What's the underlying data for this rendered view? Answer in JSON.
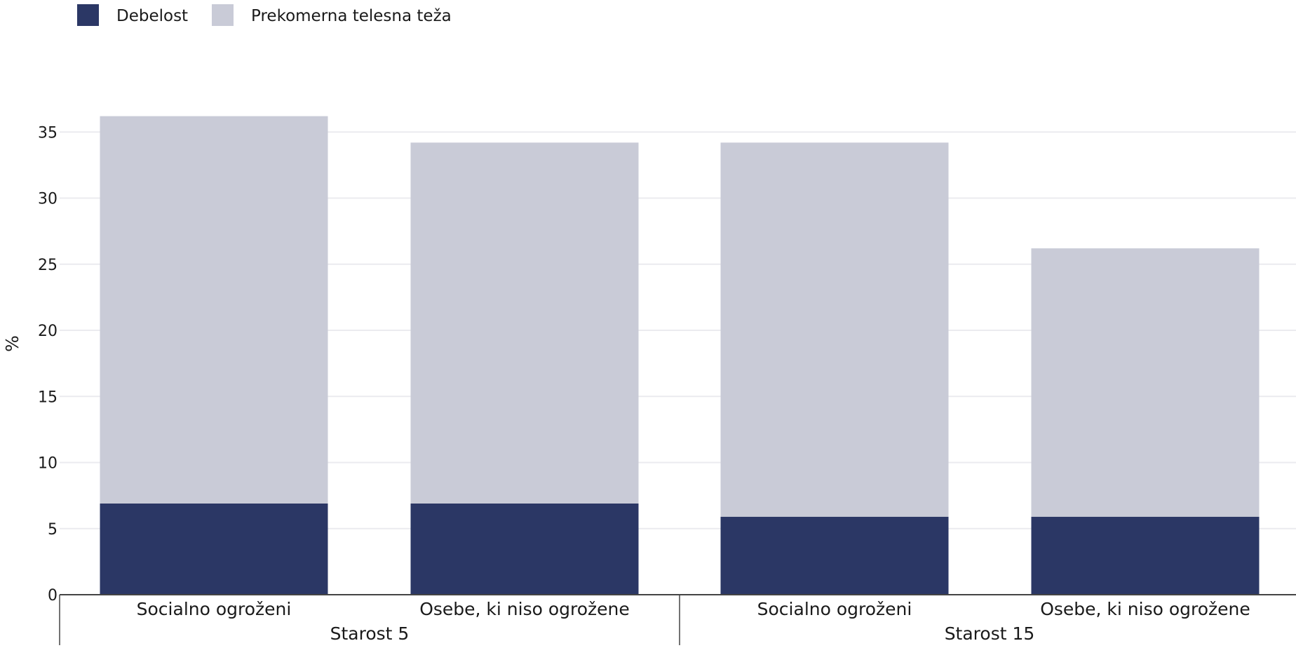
{
  "chart_data": {
    "type": "bar",
    "stacked": true,
    "ylabel": "%",
    "ylim": [
      0,
      37
    ],
    "yticks": [
      0,
      5,
      10,
      15,
      20,
      25,
      30,
      35
    ],
    "grid": true,
    "legend_position": "top-left",
    "groups": [
      {
        "label": "Starost 5",
        "categories": [
          "Socialno ogroženi",
          "Osebe, ki niso ogrožene"
        ]
      },
      {
        "label": "Starost 15",
        "categories": [
          "Socialno ogroženi",
          "Osebe, ki niso ogrožene"
        ]
      }
    ],
    "series": [
      {
        "name": "Debelost",
        "color": "#2b3765",
        "values": [
          6.9,
          6.9,
          5.9,
          5.9
        ]
      },
      {
        "name": "Prekomerna telesna teža",
        "color": "#c9cbd7",
        "values": [
          29.3,
          27.3,
          28.3,
          20.3
        ]
      }
    ]
  }
}
